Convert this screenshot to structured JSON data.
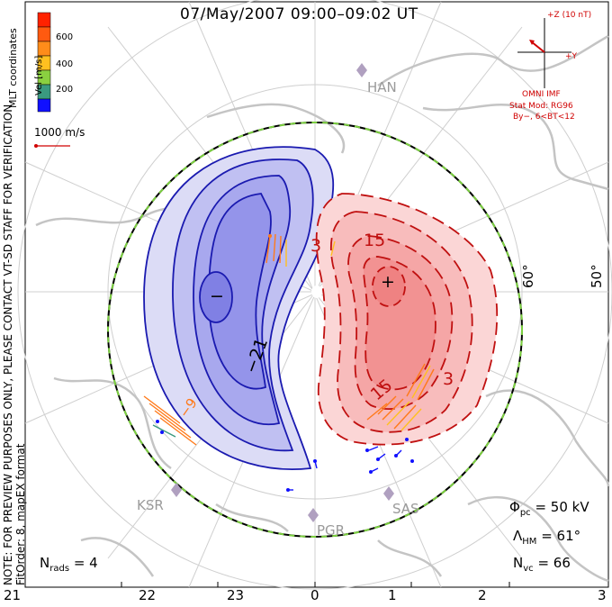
{
  "title": "07/May/2007 09:00–09:02 UT",
  "note_line1": "NOTE: FOR PREVIEW PURPOSES ONLY, PLEASE CONTACT VT-SD STAFF FOR VERIFICATION.",
  "note_line2": "FitOrder: 8, mapEX format",
  "colorbar": {
    "label": "Vel [m/s]",
    "coord_label": "MLT coordinates",
    "ticks": [
      "600",
      "400",
      "200"
    ],
    "colors": [
      "#ff2200",
      "#ff7a1a",
      "#ffc020",
      "#8ad040",
      "#3a9a80",
      "#2244dd",
      "#1010ff"
    ]
  },
  "vector_scale": "1000 m/s",
  "imf": {
    "axis_z": "+Z (10 nT)",
    "axis_y": "+Y",
    "label": "OMNI IMF",
    "stat_mod": "Stat Mod: RG96",
    "conditions": "By−, 6<BT<12"
  },
  "stations": [
    "HAN",
    "KSR",
    "PGR",
    "SAS"
  ],
  "latitude_labels": [
    "60°",
    "50°"
  ],
  "contour_labels": {
    "neg_center": "−",
    "neg_value": "−21",
    "neg_edge": "−9",
    "pos_center": "+",
    "pos_value_top": "15",
    "pos_value_low": "15",
    "pos_edge": "3",
    "pos_edge2": "3"
  },
  "mlt_labels": [
    "21",
    "22",
    "23",
    "0",
    "1",
    "2",
    "3"
  ],
  "stats": {
    "phi_pc": "Φpc = 50 kV",
    "phi_symbol": "Φ",
    "phi_sub": "pc",
    "phi_value": "= 50 kV",
    "lambda_symbol": "Λ",
    "lambda_sub": "HM",
    "lambda_value": "= 61°",
    "nvc_symbol": "N",
    "nvc_sub": "vc",
    "nvc_value": "= 66",
    "nrads_symbol": "N",
    "nrads_sub": "rads",
    "nrads_value": "= 4"
  },
  "colors": {
    "negative_fill": "#8f8ff0",
    "negative_line": "#1a1ab0",
    "positive_fill": "#f4a0a0",
    "positive_line": "#c01010",
    "coast": "#c8c8c8",
    "boundary_green": "#7cd040",
    "imf_red": "#d00000",
    "station": "#b0a0c0"
  }
}
